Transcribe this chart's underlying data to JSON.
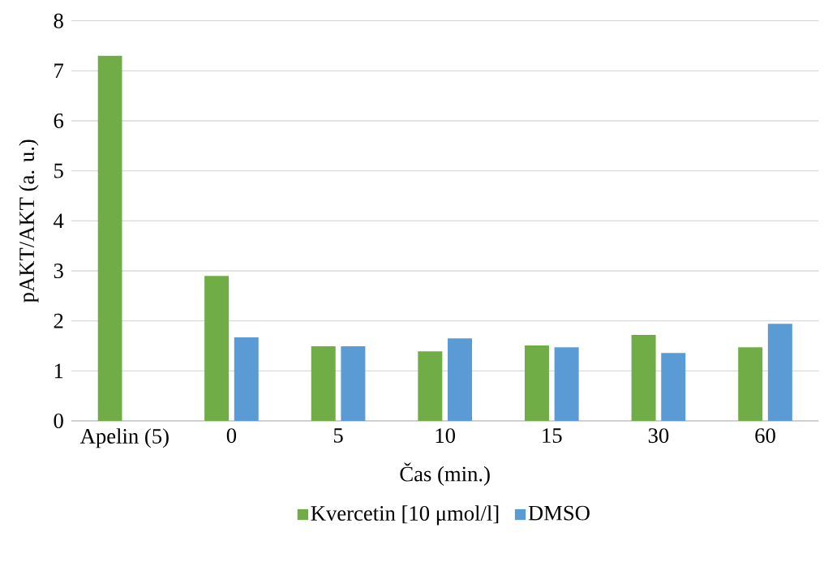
{
  "chart_data": {
    "type": "bar",
    "xlabel": "Čas (min.)",
    "ylabel": "pAKT/AKT (a. u.)",
    "categories": [
      "Apelin (5)",
      "0",
      "5",
      "10",
      "15",
      "30",
      "60"
    ],
    "series": [
      {
        "name": "Kvercetin [10 μmol/l]",
        "color": "#70ad47",
        "values": [
          7.3,
          2.9,
          1.49,
          1.39,
          1.51,
          1.72,
          1.47
        ]
      },
      {
        "name": "DMSO",
        "color": "#5b9bd5",
        "values": [
          null,
          1.67,
          1.49,
          1.65,
          1.47,
          1.36,
          1.94
        ]
      }
    ],
    "ylim": [
      0,
      8
    ],
    "yticks": [
      0,
      1,
      2,
      3,
      4,
      5,
      6,
      7,
      8
    ],
    "grid": "y",
    "legend": "bottom"
  }
}
